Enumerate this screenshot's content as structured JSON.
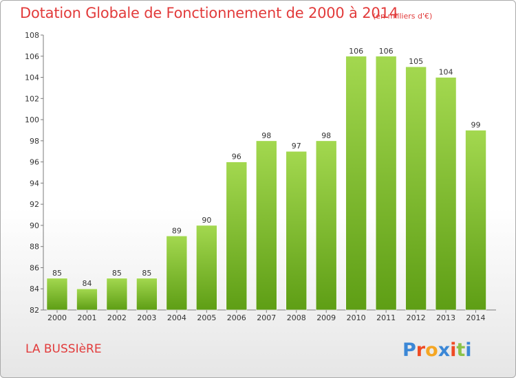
{
  "title": "Dotation Globale de Fonctionnement de 2000 à 2014",
  "subtitle": "(en milliers d'€)",
  "commune": "LA BUSSIèRE",
  "logo": {
    "text": "Proxiti",
    "colors": [
      "#3b87d6",
      "#ef4b24",
      "#f5a623",
      "#3b87d6",
      "#ef4b24",
      "#8bc34a",
      "#3b87d6"
    ]
  },
  "colors": {
    "title": "#e23b3b",
    "bar_light": "#9fd24b",
    "bar_dark": "#5f9f16"
  },
  "chart_data": {
    "type": "bar",
    "categories": [
      "2000",
      "2001",
      "2002",
      "2003",
      "2004",
      "2005",
      "2006",
      "2007",
      "2008",
      "2009",
      "2010",
      "2011",
      "2012",
      "2013",
      "2014"
    ],
    "values": [
      85,
      84,
      85,
      85,
      89,
      90,
      96,
      98,
      97,
      98,
      106,
      106,
      105,
      104,
      99
    ],
    "ylim": [
      82,
      108
    ],
    "yticks": [
      82,
      84,
      86,
      88,
      90,
      92,
      94,
      96,
      98,
      100,
      102,
      104,
      106,
      108
    ],
    "grid": false,
    "legend": "none"
  }
}
